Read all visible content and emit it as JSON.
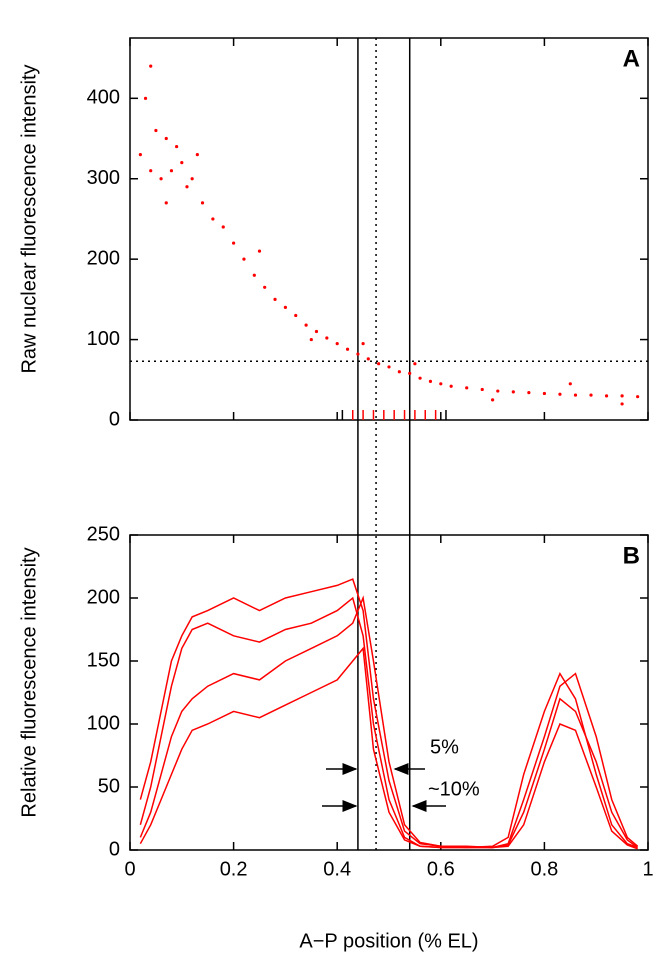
{
  "chart_data": [
    {
      "type": "scatter",
      "panel_label": "A",
      "ylabel": "Raw nuclear fluorescence intensity",
      "color": "#ff0000",
      "x": [
        0.02,
        0.03,
        0.04,
        0.05,
        0.06,
        0.07,
        0.08,
        0.09,
        0.1,
        0.11,
        0.12,
        0.14,
        0.16,
        0.18,
        0.2,
        0.22,
        0.24,
        0.26,
        0.28,
        0.3,
        0.32,
        0.34,
        0.36,
        0.38,
        0.4,
        0.42,
        0.44,
        0.46,
        0.48,
        0.5,
        0.52,
        0.54,
        0.56,
        0.58,
        0.6,
        0.62,
        0.65,
        0.68,
        0.71,
        0.74,
        0.77,
        0.8,
        0.83,
        0.86,
        0.89,
        0.92,
        0.95,
        0.98,
        0.04,
        0.07,
        0.13,
        0.25,
        0.35,
        0.45,
        0.55,
        0.7,
        0.85,
        0.95
      ],
      "y": [
        330,
        400,
        310,
        360,
        300,
        350,
        310,
        340,
        320,
        290,
        300,
        270,
        250,
        240,
        220,
        200,
        180,
        165,
        150,
        140,
        130,
        118,
        110,
        102,
        95,
        88,
        82,
        76,
        70,
        66,
        60,
        58,
        52,
        48,
        45,
        42,
        40,
        38,
        36,
        35,
        34,
        33,
        32,
        31,
        31,
        30,
        30,
        29,
        440,
        270,
        330,
        210,
        100,
        95,
        70,
        25,
        45,
        20
      ],
      "xlim": [
        0,
        1
      ],
      "ylim": [
        0,
        475
      ],
      "xticks": [
        0,
        0.2,
        0.4,
        0.6,
        0.8,
        1
      ],
      "show_xtick_labels": false,
      "yticks": [
        0,
        100,
        200,
        300,
        400
      ],
      "hline": 73,
      "vlines": [
        {
          "x": 0.44,
          "style": "solid"
        },
        {
          "x": 0.475,
          "style": "dotted"
        },
        {
          "x": 0.54,
          "style": "solid"
        }
      ],
      "rug": [
        {
          "x": 0.41,
          "color": "#000000"
        },
        {
          "x": 0.43,
          "color": "#ff0000"
        },
        {
          "x": 0.45,
          "color": "#ff0000"
        },
        {
          "x": 0.47,
          "color": "#ff0000"
        },
        {
          "x": 0.49,
          "color": "#ff0000"
        },
        {
          "x": 0.51,
          "color": "#ff0000"
        },
        {
          "x": 0.53,
          "color": "#ff0000"
        },
        {
          "x": 0.55,
          "color": "#ff0000"
        },
        {
          "x": 0.57,
          "color": "#ff0000"
        },
        {
          "x": 0.59,
          "color": "#ff0000"
        },
        {
          "x": 0.61,
          "color": "#000000"
        }
      ]
    },
    {
      "type": "line",
      "panel_label": "B",
      "ylabel": "Relative fluorescence intensity",
      "xlabel": "A−P position (% EL)",
      "x": [
        0.02,
        0.04,
        0.06,
        0.08,
        0.1,
        0.12,
        0.15,
        0.2,
        0.25,
        0.3,
        0.35,
        0.4,
        0.43,
        0.45,
        0.47,
        0.5,
        0.53,
        0.56,
        0.6,
        0.65,
        0.7,
        0.73,
        0.76,
        0.8,
        0.83,
        0.86,
        0.9,
        0.93,
        0.96,
        0.98
      ],
      "series": [
        {
          "color": "#ff0000",
          "values": [
            20,
            50,
            90,
            130,
            160,
            175,
            180,
            170,
            165,
            175,
            180,
            190,
            200,
            170,
            100,
            40,
            10,
            3,
            2,
            2,
            3,
            10,
            60,
            110,
            140,
            120,
            60,
            20,
            5,
            2
          ]
        },
        {
          "color": "#ff0000",
          "values": [
            40,
            70,
            110,
            150,
            170,
            185,
            190,
            200,
            190,
            200,
            205,
            210,
            215,
            190,
            120,
            55,
            15,
            5,
            3,
            3,
            2,
            5,
            40,
            90,
            130,
            140,
            90,
            40,
            10,
            3
          ]
        },
        {
          "color": "#ff0000",
          "values": [
            10,
            30,
            60,
            90,
            110,
            120,
            130,
            140,
            135,
            150,
            160,
            170,
            180,
            200,
            150,
            70,
            20,
            6,
            3,
            2,
            2,
            4,
            30,
            80,
            120,
            110,
            70,
            30,
            8,
            2
          ]
        },
        {
          "color": "#ff0000",
          "values": [
            5,
            20,
            40,
            60,
            80,
            95,
            100,
            110,
            105,
            115,
            125,
            135,
            150,
            160,
            80,
            30,
            8,
            3,
            2,
            2,
            2,
            3,
            20,
            70,
            100,
            95,
            50,
            15,
            4,
            1
          ]
        }
      ],
      "xlim": [
        0,
        1
      ],
      "ylim": [
        0,
        250
      ],
      "xticks": [
        0,
        0.2,
        0.4,
        0.6,
        0.8,
        1
      ],
      "show_xtick_labels": true,
      "yticks": [
        0,
        50,
        100,
        150,
        200,
        250
      ],
      "annotations": [
        "5%",
        "~10%"
      ]
    }
  ]
}
